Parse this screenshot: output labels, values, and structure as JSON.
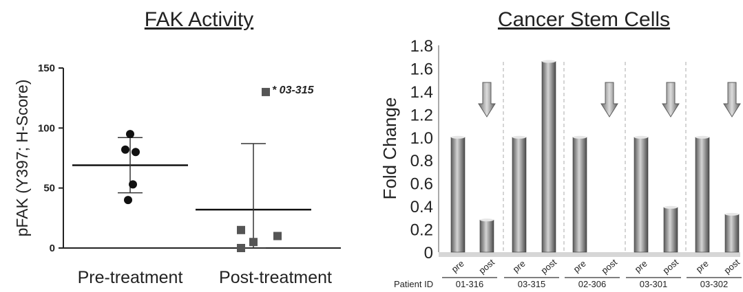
{
  "chart_data": [
    {
      "type": "scatter",
      "title": "FAK Activity",
      "ylabel": "pFAK (Y397; H-Score)",
      "ylim": [
        0,
        150
      ],
      "yticks": [
        "0",
        "50",
        "100",
        "150"
      ],
      "categories": [
        "Pre-treatment",
        "Post-treatment"
      ],
      "series": [
        {
          "category": "Pre-treatment",
          "marker": "circle",
          "values": [
            95,
            82,
            80,
            53,
            40
          ],
          "mean": 69,
          "error_low": 46,
          "error_high": 92
        },
        {
          "category": "Post-treatment",
          "marker": "square",
          "values": [
            130,
            15,
            10,
            5,
            0
          ],
          "mean": 32,
          "error_low": 0,
          "error_high": 87
        }
      ],
      "annotation": {
        "text": "* 03-315",
        "x": "Post-treatment",
        "y": 130
      },
      "colors": {
        "marker": "#111111",
        "square": "#555555"
      }
    },
    {
      "type": "bar",
      "title": "Cancer Stem Cells",
      "ylabel": "Fold Change",
      "ylim": [
        0,
        1.8
      ],
      "yticks": [
        "0",
        "0.2",
        "0.4",
        "0.6",
        "0.8",
        "1.0",
        "1.2",
        "1.4",
        "1.6",
        "1.8"
      ],
      "group_label": "Patient ID",
      "bar_labels": [
        "pre",
        "post"
      ],
      "groups": [
        {
          "patient": "01-316",
          "pre": 1.0,
          "post": 0.28,
          "arrow": true
        },
        {
          "patient": "03-315",
          "pre": 1.0,
          "post": 1.66,
          "arrow": false
        },
        {
          "patient": "02-306",
          "pre": 1.0,
          "post": 0.0,
          "arrow": true
        },
        {
          "patient": "03-301",
          "pre": 1.0,
          "post": 0.39,
          "arrow": true
        },
        {
          "patient": "03-302",
          "pre": 1.0,
          "post": 0.33,
          "arrow": true
        }
      ],
      "colors": {
        "bar_dark": "#555555",
        "bar_light": "#cfcfcf",
        "divider": "#aaaaaa",
        "arrow": "#8a8a8a"
      }
    }
  ]
}
